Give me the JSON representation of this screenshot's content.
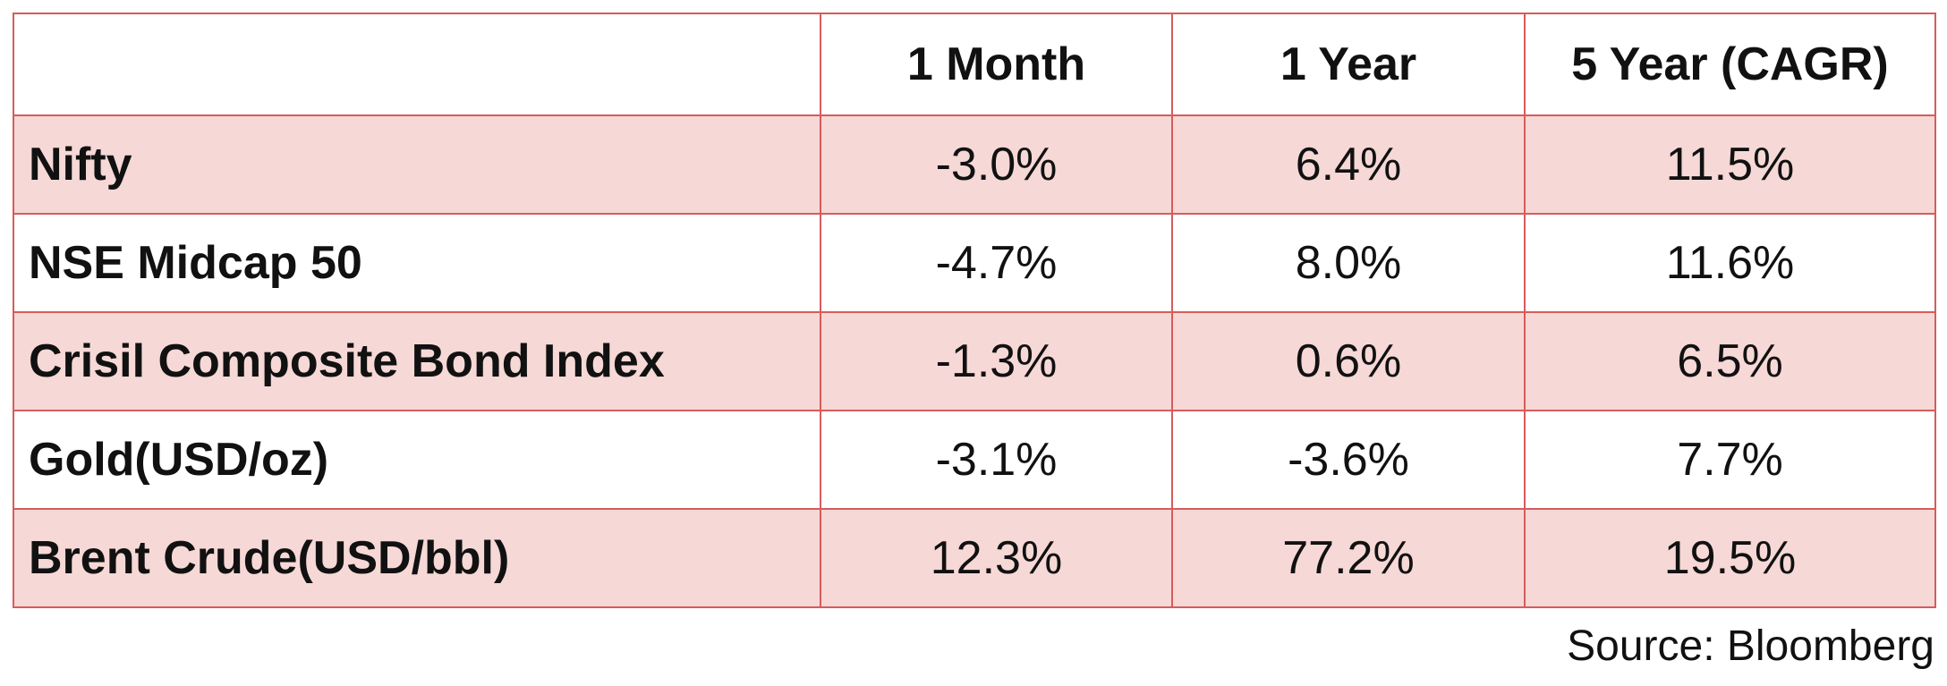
{
  "table": {
    "header": [
      "",
      "1 Month",
      "1 Year",
      "5 Year (CAGR)"
    ],
    "rows": [
      [
        "Nifty",
        "-3.0%",
        "6.4%",
        "11.5%"
      ],
      [
        "NSE Midcap 50",
        "-4.7%",
        "8.0%",
        "11.6%"
      ],
      [
        "Crisil Composite Bond Index",
        "-1.3%",
        "0.6%",
        "6.5%"
      ],
      [
        "Gold(USD/oz)",
        "-3.1%",
        "-3.6%",
        "7.7%"
      ],
      [
        "Brent Crude(USD/bbl)",
        "12.3%",
        "77.2%",
        "19.5%"
      ]
    ]
  },
  "source": "Source: Bloomberg"
}
